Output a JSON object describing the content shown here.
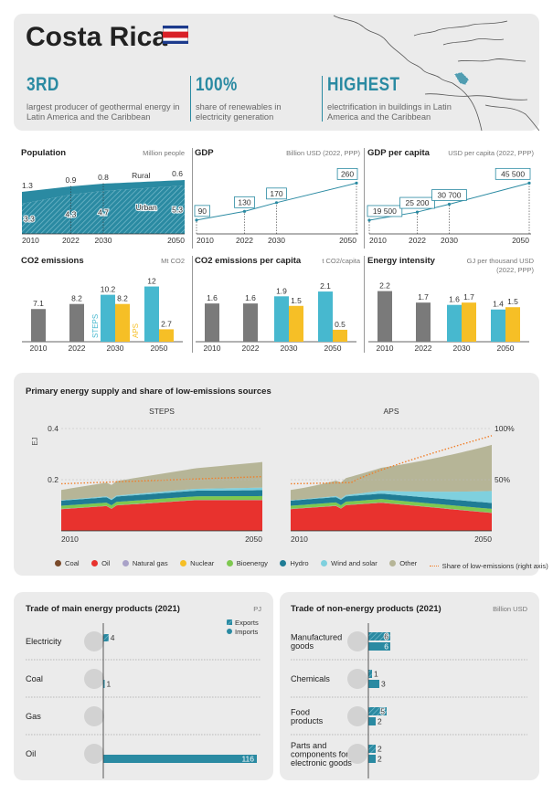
{
  "header": {
    "country": "Costa Rica",
    "stats": [
      {
        "value": "3RD",
        "text": "largest producer of geothermal energy in Latin America and the Caribbean"
      },
      {
        "value": "100%",
        "text": "share of renewables in electricity generation"
      },
      {
        "value": "HIGHEST",
        "text": "electrification in buildings in Latin America and the Caribbean"
      }
    ]
  },
  "colors": {
    "teal": "#2a8aa2",
    "grey": "#7a7a7a",
    "light_teal": "#47b8cf",
    "yellow": "#f6bf26",
    "coal": "#7a4a2a",
    "oil": "#e8322e",
    "natural_gas": "#a9a2c8",
    "nuclear": "#f6bf26",
    "bioenergy": "#7ec850",
    "hydro": "#1f7c95",
    "wind_solar": "#7fd0de",
    "other": "#b6b597",
    "share": "#f07f2a"
  },
  "chart_data": [
    {
      "id": "population",
      "type": "area",
      "title": "Population",
      "unit": "Million people",
      "x": [
        2010,
        2022,
        2030,
        2050
      ],
      "series": [
        {
          "name": "Rural",
          "values": [
            1.3,
            0.9,
            0.8,
            0.6
          ]
        },
        {
          "name": "Urban",
          "values": [
            3.3,
            4.3,
            4.7,
            5.3
          ]
        }
      ]
    },
    {
      "id": "gdp",
      "type": "line",
      "title": "GDP",
      "unit": "Billion USD (2022, PPP)",
      "x": [
        2010,
        2022,
        2030,
        2050
      ],
      "values": [
        90,
        130,
        170,
        260
      ],
      "labels": [
        "90",
        "130",
        "170",
        "260"
      ]
    },
    {
      "id": "gdp_per_capita",
      "type": "line",
      "title": "GDP per capita",
      "unit": "USD per capita (2022, PPP)",
      "x": [
        2010,
        2022,
        2030,
        2050
      ],
      "values": [
        19500,
        25200,
        30700,
        45500
      ],
      "labels": [
        "19 500",
        "25 200",
        "30 700",
        "45 500"
      ]
    },
    {
      "id": "co2",
      "type": "bar",
      "title": "CO2 emissions",
      "unit": "Mt CO2",
      "categories": [
        "2010",
        "2022",
        "2030",
        "2050"
      ],
      "historical": [
        7.1,
        8.2
      ],
      "steps": [
        10.2,
        12
      ],
      "aps": [
        8.2,
        2.7
      ],
      "steps_label": "STEPS",
      "aps_label": "APS"
    },
    {
      "id": "co2_per_capita",
      "type": "bar",
      "title": "CO2 emissions per capita",
      "unit": "t CO2/capita",
      "categories": [
        "2010",
        "2022",
        "2030",
        "2050"
      ],
      "historical": [
        1.6,
        1.6
      ],
      "steps": [
        1.9,
        2.1
      ],
      "aps": [
        1.5,
        0.5
      ]
    },
    {
      "id": "energy_intensity",
      "type": "bar",
      "title": "Energy intensity",
      "unit": "GJ per thousand USD (2022, PPP)",
      "categories": [
        "2010",
        "2022",
        "2030",
        "2050"
      ],
      "historical": [
        2.2,
        1.7
      ],
      "steps": [
        1.6,
        1.4
      ],
      "aps": [
        1.7,
        1.5
      ]
    },
    {
      "id": "primary_energy",
      "type": "area",
      "title": "Primary energy supply and share of low-emissions sources",
      "panels": [
        "STEPS",
        "APS"
      ],
      "x": [
        2010,
        2050
      ],
      "x_ticks": [
        "2010",
        "2050"
      ],
      "y_left": {
        "label": "EJ",
        "ticks": [
          "0.2",
          "0.4"
        ],
        "range": [
          0,
          0.45
        ]
      },
      "y_right": {
        "ticks": [
          "50%",
          "100%"
        ]
      },
      "legend": [
        "Coal",
        "Oil",
        "Natural gas",
        "Nuclear",
        "Bioenergy",
        "Hydro",
        "Wind and solar",
        "Other",
        "Share of low-emissions (right axis)"
      ]
    },
    {
      "id": "trade_energy",
      "type": "bar",
      "title": "Trade of main energy products (2021)",
      "unit": "PJ",
      "legend": [
        "Exports",
        "Imports"
      ],
      "categories": [
        "Electricity",
        "Coal",
        "Gas",
        "Oil"
      ],
      "exports": [
        4,
        null,
        null,
        null
      ],
      "imports": [
        null,
        1,
        null,
        116
      ],
      "labels": [
        "4",
        "1",
        "",
        "116"
      ]
    },
    {
      "id": "trade_non_energy",
      "type": "bar",
      "title": "Trade of non-energy products (2021)",
      "unit": "Billion USD",
      "categories": [
        "Manufactured goods",
        "Chemicals",
        "Food products",
        "Parts and components for electronic goods"
      ],
      "exports": [
        6,
        1,
        5,
        2
      ],
      "imports": [
        6,
        3,
        2,
        2
      ]
    }
  ]
}
